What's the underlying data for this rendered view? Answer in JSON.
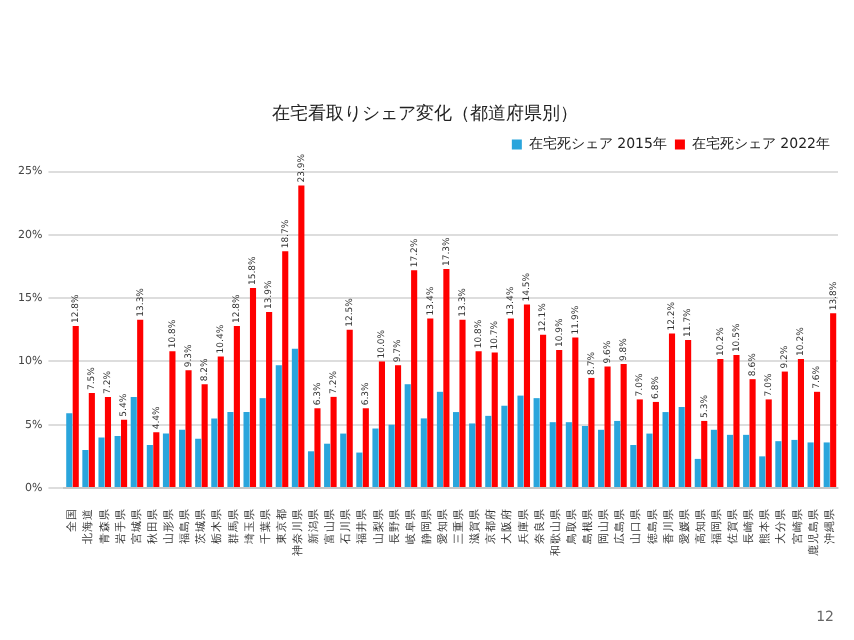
{
  "chart_data": {
    "type": "bar",
    "title": "在宅看取りシェア変化（都道府県別）",
    "categories": [
      "全国",
      "北海道",
      "青森県",
      "岩手県",
      "宮城県",
      "秋田県",
      "山形県",
      "福島県",
      "茨城県",
      "栃木県",
      "群馬県",
      "埼玉県",
      "千葉県",
      "東京都",
      "神奈川県",
      "新潟県",
      "富山県",
      "石川県",
      "福井県",
      "山梨県",
      "長野県",
      "岐阜県",
      "静岡県",
      "愛知県",
      "三重県",
      "滋賀県",
      "京都府",
      "大阪府",
      "兵庫県",
      "奈良県",
      "和歌山県",
      "鳥取県",
      "島根県",
      "岡山県",
      "広島県",
      "山口県",
      "徳島県",
      "香川県",
      "愛媛県",
      "高知県",
      "福岡県",
      "佐賀県",
      "長崎県",
      "熊本県",
      "大分県",
      "宮崎県",
      "鹿児島県",
      "沖縄県"
    ],
    "series": [
      {
        "name": "在宅死シェア 2015年",
        "color": "#2aa5dc",
        "values": [
          5.9,
          3.0,
          4.0,
          4.1,
          7.2,
          3.4,
          4.3,
          4.6,
          3.9,
          5.5,
          6.0,
          6.0,
          7.1,
          9.7,
          11.0,
          2.9,
          3.5,
          4.3,
          2.8,
          4.7,
          5.0,
          8.2,
          5.5,
          7.6,
          6.0,
          5.1,
          5.7,
          6.5,
          7.3,
          7.1,
          5.2,
          5.2,
          4.9,
          4.6,
          5.3,
          3.4,
          4.3,
          6.0,
          6.4,
          2.3,
          4.6,
          4.2,
          4.2,
          2.5,
          3.7,
          3.8,
          3.6,
          3.6
        ]
      },
      {
        "name": "在宅死シェア 2022年",
        "color": "#ff0000",
        "values": [
          12.8,
          7.5,
          7.2,
          5.4,
          13.3,
          4.4,
          10.8,
          9.3,
          8.2,
          10.4,
          12.8,
          15.8,
          13.9,
          18.7,
          23.9,
          6.3,
          7.2,
          12.5,
          6.3,
          10.0,
          9.7,
          17.2,
          13.4,
          17.3,
          13.3,
          10.8,
          10.7,
          13.4,
          14.5,
          12.1,
          10.9,
          11.9,
          8.7,
          9.6,
          9.8,
          7.0,
          6.8,
          12.2,
          11.7,
          5.3,
          10.2,
          10.5,
          8.6,
          7.0,
          9.2,
          10.2,
          7.6,
          13.8
        ],
        "value_labels": [
          "12.8%",
          "7.5%",
          "7.2%",
          "5.4%",
          "13.3%",
          "4.4%",
          "10.8%",
          "9.3%",
          "8.2%",
          "10.4%",
          "12.8%",
          "15.8%",
          "13.9%",
          "18.7%",
          "23.9%",
          "6.3%",
          "7.2%",
          "12.5%",
          "6.3%",
          "10.0%",
          "9.7%",
          "17.2%",
          "13.4%",
          "17.3%",
          "13.3%",
          "10.8%",
          "10.7%",
          "13.4%",
          "14.5%",
          "12.1%",
          "10.9%",
          "11.9%",
          "8.7%",
          "9.6%",
          "9.8%",
          "7.0%",
          "6.8%",
          "12.2%",
          "11.7%",
          "5.3%",
          "10.2%",
          "10.5%",
          "8.6%",
          "7.0%",
          "9.2%",
          "10.2%",
          "7.6%",
          "13.8%"
        ]
      }
    ],
    "ylim": [
      0,
      25
    ],
    "yticks": [
      {
        "value": 0,
        "label": "0%"
      },
      {
        "value": 5,
        "label": "5%"
      },
      {
        "value": 10,
        "label": "10%"
      },
      {
        "value": 15,
        "label": "15%"
      },
      {
        "value": 20,
        "label": "20%"
      },
      {
        "value": 25,
        "label": "25%"
      }
    ],
    "grid": "y",
    "legend": "top right",
    "annotations": [
      "12"
    ]
  }
}
